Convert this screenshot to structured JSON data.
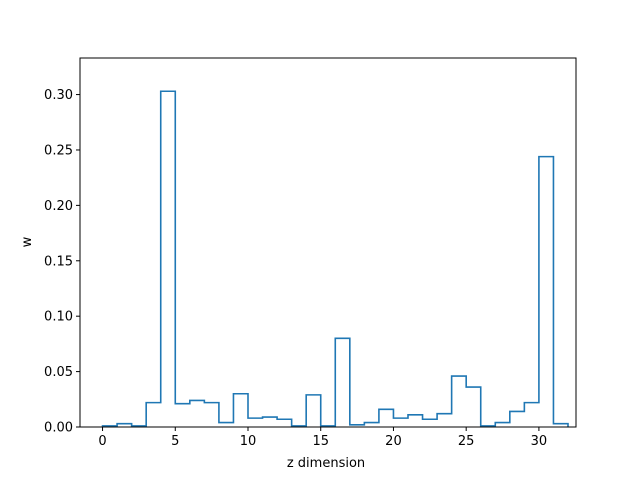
{
  "chart_data": {
    "type": "line",
    "style": "step-histogram",
    "title": "",
    "xlabel": "z dimension",
    "ylabel": "w",
    "xlim": [
      -1.55,
      32.55
    ],
    "ylim": [
      0.0,
      0.333
    ],
    "xticks": [
      0,
      5,
      10,
      15,
      20,
      25,
      30
    ],
    "yticks": [
      0.0,
      0.05,
      0.1,
      0.15,
      0.2,
      0.25,
      0.3
    ],
    "ytick_labels": [
      "0.00",
      "0.05",
      "0.10",
      "0.15",
      "0.20",
      "0.25",
      "0.30"
    ],
    "grid": false,
    "legend": "none",
    "line_color": "#1f77b4",
    "series": [
      {
        "x": [
          0,
          1,
          2,
          3,
          4,
          5,
          6,
          7,
          8,
          9,
          10,
          11,
          12,
          13,
          14,
          15,
          16,
          17,
          18,
          19,
          20,
          21,
          22,
          23,
          24,
          25,
          26,
          27,
          28,
          29,
          30,
          31
        ],
        "values": [
          0.001,
          0.003,
          0.001,
          0.022,
          0.303,
          0.021,
          0.024,
          0.022,
          0.004,
          0.03,
          0.008,
          0.009,
          0.007,
          0.001,
          0.029,
          0.001,
          0.08,
          0.002,
          0.004,
          0.016,
          0.008,
          0.011,
          0.007,
          0.012,
          0.046,
          0.036,
          0.001,
          0.004,
          0.014,
          0.022,
          0.244,
          0.003
        ]
      }
    ]
  }
}
